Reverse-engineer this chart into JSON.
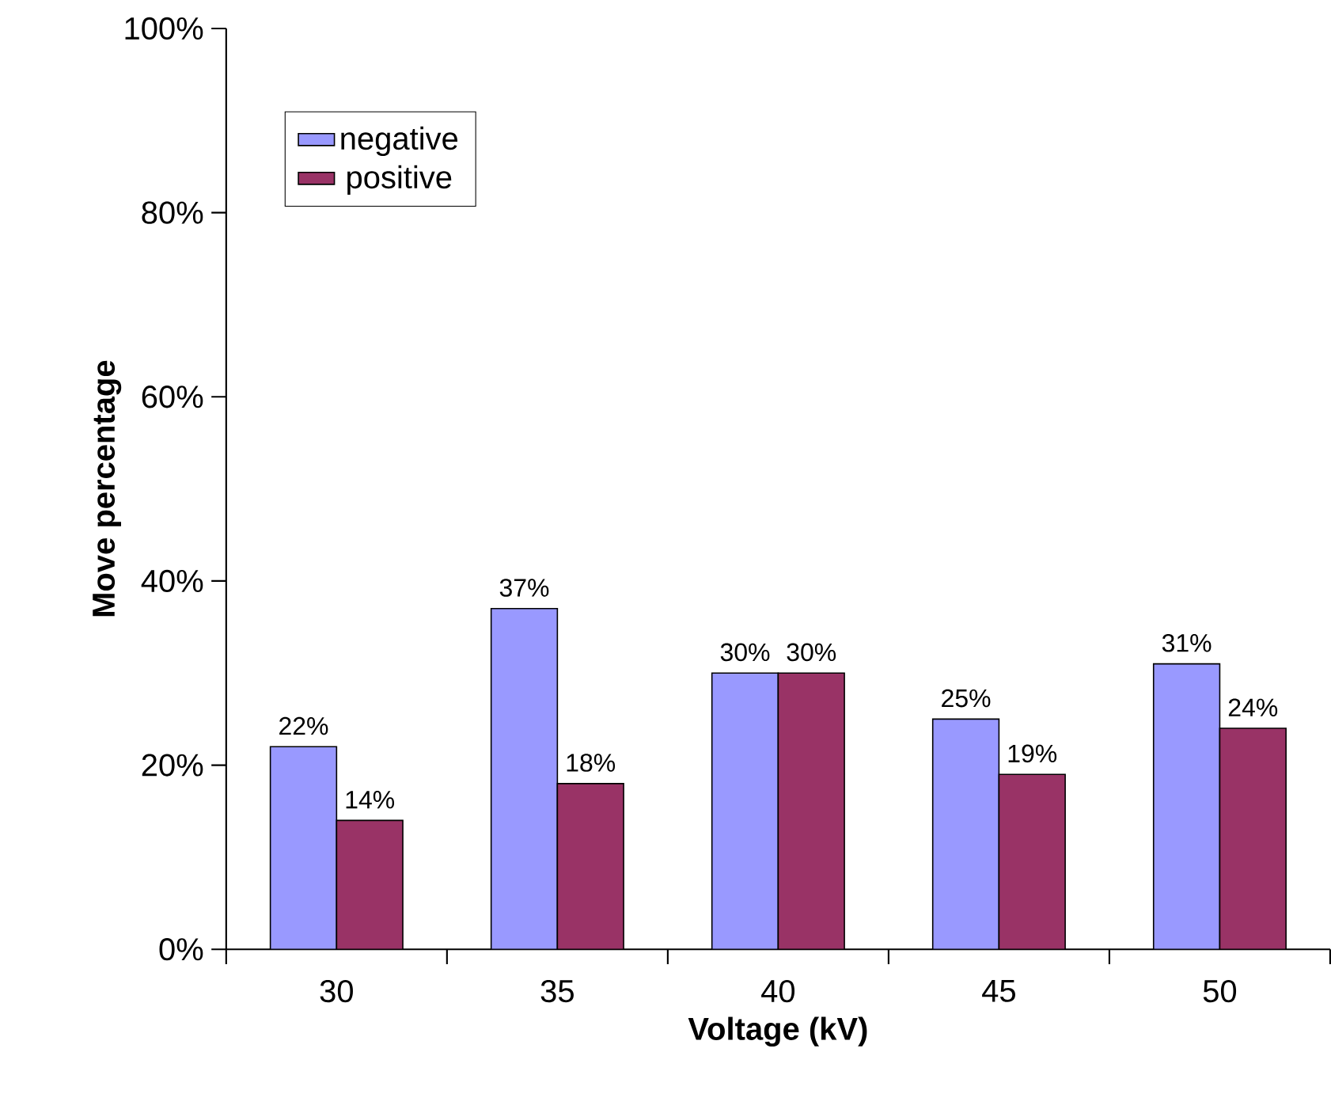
{
  "chart_data": {
    "type": "bar",
    "xlabel": "Voltage (kV)",
    "ylabel": "Move percentage",
    "categories": [
      "30",
      "35",
      "40",
      "45",
      "50"
    ],
    "series": [
      {
        "name": "negative",
        "color": "#9999ff",
        "values": [
          22,
          37,
          30,
          25,
          31
        ],
        "value_labels": [
          "22%",
          "37%",
          "30%",
          "25%",
          "31%"
        ]
      },
      {
        "name": "positive",
        "color": "#993366",
        "values": [
          14,
          18,
          30,
          19,
          24
        ],
        "value_labels": [
          "14%",
          "18%",
          "30%",
          "19%",
          "24%"
        ]
      }
    ],
    "ylim": [
      0,
      100
    ],
    "yticks": [
      {
        "value": 0,
        "label": "0%"
      },
      {
        "value": 20,
        "label": "20%"
      },
      {
        "value": 40,
        "label": "40%"
      },
      {
        "value": 60,
        "label": "60%"
      },
      {
        "value": 80,
        "label": "80%"
      },
      {
        "value": 100,
        "label": "100%"
      }
    ],
    "legend": "top left",
    "grid": false
  }
}
